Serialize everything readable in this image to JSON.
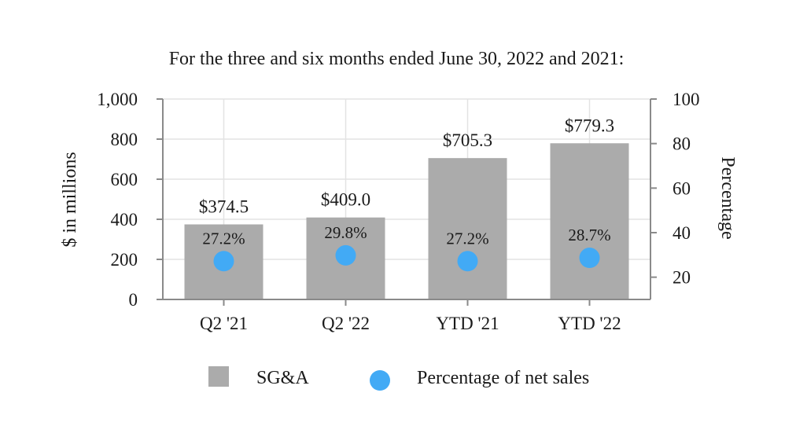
{
  "chart_data": {
    "type": "bar",
    "title": "For the three and six months ended June 30, 2022 and 2021:",
    "categories": [
      "Q2 '21",
      "Q2 '22",
      "YTD '21",
      "YTD '22"
    ],
    "series": [
      {
        "name": "SG&A",
        "type": "bar",
        "axis": "left",
        "values": [
          374.5,
          409.0,
          705.3,
          779.3
        ],
        "labels": [
          "$374.5",
          "$409.0",
          "$705.3",
          "$779.3"
        ],
        "color": "#ababab"
      },
      {
        "name": "Percentage of net sales",
        "type": "scatter",
        "axis": "right",
        "values": [
          27.2,
          29.8,
          27.2,
          28.7
        ],
        "labels": [
          "27.2%",
          "29.8%",
          "27.2%",
          "28.7%"
        ],
        "color": "#42aaf5"
      }
    ],
    "ylabel": "$ in millions",
    "ylim": [
      0,
      1000
    ],
    "yticks": [
      "0",
      "200",
      "400",
      "600",
      "800",
      "1,000"
    ],
    "y2label": "Percentage",
    "y2lim": [
      10,
      100
    ],
    "y2ticks": [
      "20",
      "40",
      "60",
      "80",
      "100"
    ],
    "grid": true,
    "legend_position": "bottom"
  }
}
